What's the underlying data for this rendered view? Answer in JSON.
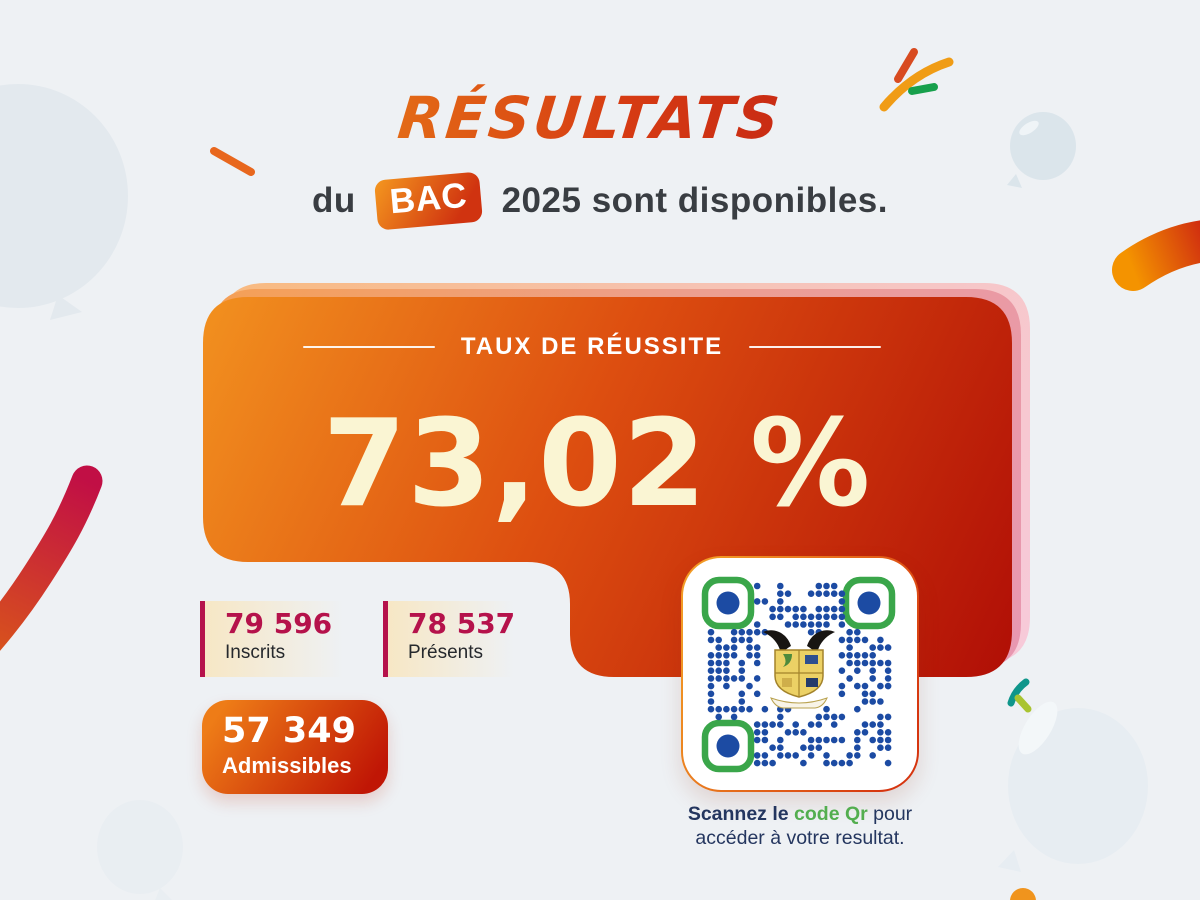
{
  "page": {
    "background": "#eef1f4"
  },
  "header": {
    "title": "RÉSULTATS",
    "subtitle": {
      "prefix": "du",
      "badge": "BAC",
      "year": "2025",
      "suffix": "sont disponibles."
    }
  },
  "result_card": {
    "label": "TAUX DE RÉUSSITE",
    "rate": "73,02 %"
  },
  "stats": [
    {
      "value": "79 596",
      "label": "Inscrits"
    },
    {
      "value": "78 537",
      "label": "Présents"
    },
    {
      "value": "57 349",
      "label": "Admissibles"
    }
  ],
  "qr_section": {
    "caption_bold": "Scannez le",
    "caption_green": "code Qr",
    "caption_after": "pour",
    "caption_line2": "accéder à votre resultat."
  },
  "colors": {
    "background": "#eef1f4",
    "card_orange": "#f2911f",
    "card_red": "#b00e06",
    "cream_text": "#faf5d3",
    "crimson_accent": "#b5124b",
    "dark_text": "#393d42",
    "navy_text": "#24365f",
    "green_accent": "#53ae4f",
    "qr_blue": "#1c4ba3",
    "qr_finder_green": "#3aa64a"
  }
}
